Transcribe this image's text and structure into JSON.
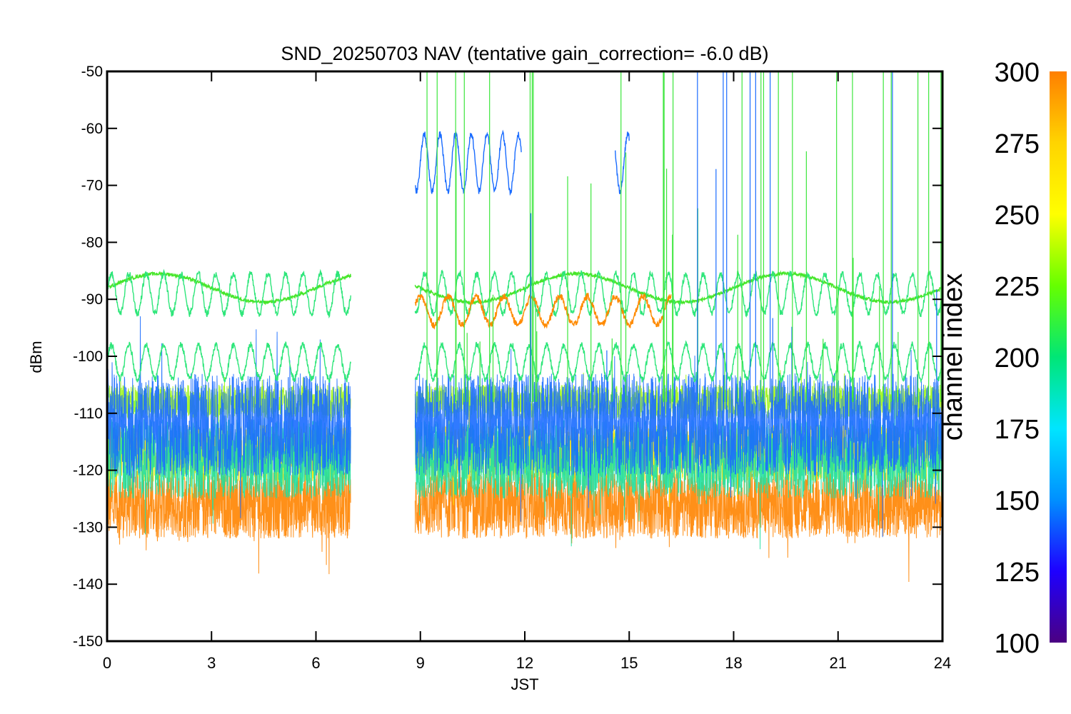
{
  "chart_data": {
    "type": "line",
    "title": "SND_20250703 NAV (tentative gain_correction= -6.0 dB)",
    "xlabel": "JST",
    "ylabel": "dBm",
    "xlim": [
      0,
      24
    ],
    "ylim": [
      -150,
      -50
    ],
    "xticks": [
      0,
      3,
      6,
      9,
      12,
      15,
      18,
      21,
      24
    ],
    "yticks": [
      -50,
      -60,
      -70,
      -80,
      -90,
      -100,
      -110,
      -120,
      -130,
      -140,
      -150
    ],
    "data_gap": [
      7.0,
      8.85
    ],
    "colorbar": {
      "label": "channel index",
      "range": [
        100,
        300
      ],
      "ticks": [
        300,
        275,
        250,
        225,
        200,
        175,
        150,
        125,
        100
      ],
      "colors": [
        "#4b0082",
        "#1e00ff",
        "#0090ff",
        "#00e5ff",
        "#00e676",
        "#66ff00",
        "#ffff00",
        "#ffd400",
        "#ff7f00"
      ]
    },
    "series": [
      {
        "channel": 290,
        "level": -126,
        "spread": 6,
        "color": "#ff8400",
        "style": "noise"
      },
      {
        "channel": 270,
        "level": -117,
        "spread": 5,
        "color": "#ffe600",
        "style": "noise"
      },
      {
        "channel": 258,
        "level": -108,
        "spread": 3,
        "color": "#9ef51a",
        "style": "noise"
      },
      {
        "channel": 190,
        "level": -118,
        "spread": 7,
        "color": "#1fe0a0",
        "style": "noise"
      },
      {
        "channel": 150,
        "level": -112,
        "spread": 9,
        "color": "#1a6cff",
        "style": "noise"
      },
      {
        "channel": 235,
        "level": -88,
        "amplitude": 2.5,
        "period_h": 6,
        "color": "#47e62a",
        "style": "slow"
      },
      {
        "channel": 215,
        "level": -89,
        "amplitude": 3.5,
        "period_h": 0.5,
        "color": "#2ee67a",
        "style": "fast"
      },
      {
        "channel": 210,
        "level": -101,
        "amplitude": 3,
        "period_h": 0.5,
        "color": "#2ee67a",
        "style": "fast"
      },
      {
        "channel": 160,
        "level": -66,
        "amplitude": 5,
        "period_h": 0.45,
        "color": "#1a6cff",
        "style": "burst"
      },
      {
        "channel": 285,
        "level": -92,
        "amplitude": 2.5,
        "period_h": 0.8,
        "color": "#ff8a00",
        "style": "burst"
      }
    ]
  }
}
